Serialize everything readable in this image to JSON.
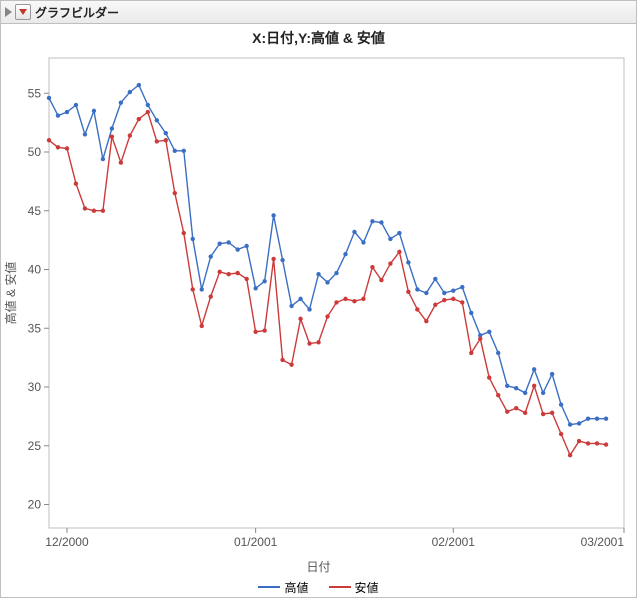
{
  "panel_title": "グラフビルダー",
  "chart": {
    "type": "line",
    "title": "X:日付,Y:高値 & 安値",
    "x_axis_title": "日付",
    "y_axis_title": "高値 & 安値",
    "background_color": "#ffffff",
    "plot_border_color": "#bfbfbf",
    "grid_color": "#e0e0e0",
    "title_fontsize": 14,
    "label_fontsize": 12,
    "ylim": [
      18,
      58
    ],
    "ytick_step": 5,
    "xlim_index": [
      0,
      64
    ],
    "xticks": [
      {
        "idx": 2,
        "label": "12/2000"
      },
      {
        "idx": 23,
        "label": "01/2001"
      },
      {
        "idx": 45,
        "label": "02/2001"
      },
      {
        "idx": 64,
        "label": "03/2001"
      }
    ],
    "marker_radius": 2.2,
    "line_width": 1.4,
    "series": [
      {
        "name": "高値",
        "color": "#3b6fc4",
        "y": [
          54.6,
          53.1,
          53.4,
          54.0,
          51.5,
          53.5,
          49.4,
          52.0,
          54.2,
          55.1,
          55.7,
          54.0,
          52.7,
          51.6,
          50.1,
          50.1,
          42.6,
          38.3,
          41.1,
          42.2,
          42.3,
          41.7,
          42.0,
          38.4,
          39.0,
          44.6,
          40.8,
          36.9,
          37.5,
          36.6,
          39.6,
          38.9,
          39.7,
          41.3,
          43.2,
          42.3,
          44.1,
          44.0,
          42.6,
          43.1,
          40.6,
          38.3,
          38.0,
          39.2,
          38.0,
          38.2,
          38.5,
          36.3,
          34.4,
          34.7,
          32.9,
          30.1,
          29.9,
          29.5,
          31.5,
          29.5,
          31.1,
          28.5,
          26.8,
          26.9,
          27.3,
          27.3,
          27.3
        ]
      },
      {
        "name": "安値",
        "color": "#cc3a3a",
        "y": [
          51.0,
          50.4,
          50.3,
          47.3,
          45.2,
          45.0,
          45.0,
          51.3,
          49.1,
          51.4,
          52.8,
          53.4,
          50.9,
          51.0,
          46.5,
          43.1,
          38.3,
          35.2,
          37.7,
          39.8,
          39.6,
          39.7,
          39.2,
          34.7,
          34.8,
          40.9,
          32.3,
          31.9,
          35.8,
          33.7,
          33.8,
          36.0,
          37.2,
          37.5,
          37.3,
          37.5,
          40.2,
          39.1,
          40.5,
          41.5,
          38.1,
          36.6,
          35.6,
          37.0,
          37.4,
          37.5,
          37.2,
          32.9,
          34.1,
          30.8,
          29.3,
          27.9,
          28.2,
          27.8,
          30.1,
          27.7,
          27.8,
          26.0,
          24.2,
          25.4,
          25.2,
          25.2,
          25.1
        ]
      }
    ],
    "legend_items": [
      {
        "label": "高値",
        "color": "#3b6fc4"
      },
      {
        "label": "安値",
        "color": "#cc3a3a"
      }
    ]
  }
}
